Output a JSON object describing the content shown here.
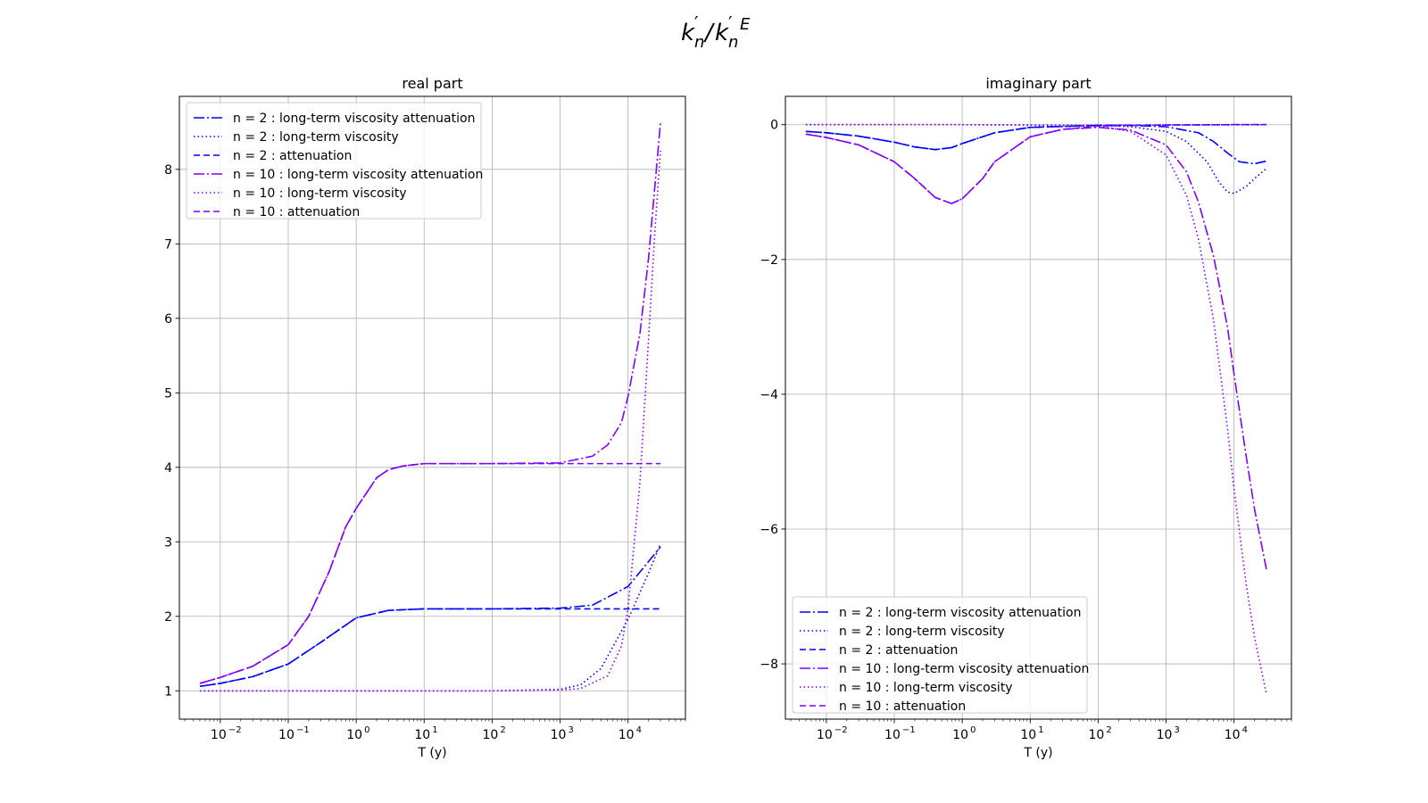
{
  "figure": {
    "title_main": "k",
    "title_sub": "n",
    "title_prime": "′",
    "title_slash": "/",
    "title_sup": "E"
  },
  "legend_labels": [
    "n = 2 : long-term viscosity attenuation",
    "n = 2 : long-term viscosity",
    "n = 2 :  attenuation",
    "n = 10 : long-term viscosity attenuation",
    "n = 10 : long-term viscosity",
    "n = 10 :  attenuation"
  ],
  "colors": {
    "n2": "#0000ff",
    "n10": "#7f00ff",
    "grid": "#b0b0b0"
  },
  "chart_data": [
    {
      "type": "line",
      "title": "real part",
      "xlabel": "T (y)",
      "ylabel": "",
      "xscale": "log",
      "xlim": [
        0.0025,
        70000
      ],
      "ylim": [
        0.62,
        8.98
      ],
      "xticks": [
        0.01,
        0.1,
        1,
        10,
        100,
        1000,
        10000
      ],
      "xtick_labels": [
        "10",
        "10",
        "10",
        "10",
        "10",
        "10",
        "10"
      ],
      "xtick_exponents": [
        "−2",
        "−1",
        "0",
        "1",
        "2",
        "3",
        "4"
      ],
      "yticks": [
        1,
        2,
        3,
        4,
        5,
        6,
        7,
        8
      ],
      "ytick_labels": [
        "1",
        "2",
        "3",
        "4",
        "5",
        "6",
        "7",
        "8"
      ],
      "grid": true,
      "legend_position": "upper-left",
      "series": [
        {
          "style": "dashdot",
          "color": "#0000ff",
          "x": [
            0.005,
            0.01,
            0.03,
            0.1,
            0.3,
            1,
            3,
            10,
            100,
            1000,
            3000,
            10000,
            30000
          ],
          "y": [
            1.06,
            1.1,
            1.19,
            1.36,
            1.65,
            1.98,
            2.08,
            2.1,
            2.1,
            2.11,
            2.15,
            2.4,
            2.93
          ]
        },
        {
          "style": "dotted",
          "color": "#0000ff",
          "x": [
            0.005,
            1,
            100,
            1000,
            2000,
            4000,
            10000,
            20000,
            30000
          ],
          "y": [
            1.0,
            1.0,
            1.0,
            1.02,
            1.08,
            1.3,
            1.96,
            2.58,
            2.97
          ]
        },
        {
          "style": "dashed",
          "color": "#0000ff",
          "x": [
            0.005,
            0.01,
            0.03,
            0.1,
            0.3,
            1,
            3,
            10,
            100,
            1000,
            10000,
            30000
          ],
          "y": [
            1.06,
            1.1,
            1.19,
            1.36,
            1.65,
            1.98,
            2.08,
            2.1,
            2.1,
            2.1,
            2.1,
            2.1
          ]
        },
        {
          "style": "dashdot",
          "color": "#7f00ff",
          "x": [
            0.005,
            0.01,
            0.03,
            0.1,
            0.2,
            0.4,
            0.7,
            1,
            2,
            3,
            5,
            10,
            100,
            1000,
            3000,
            5000,
            8000,
            10000,
            15000,
            20000,
            25000,
            30000
          ],
          "y": [
            1.1,
            1.18,
            1.33,
            1.62,
            2.0,
            2.6,
            3.2,
            3.45,
            3.86,
            3.97,
            4.02,
            4.05,
            4.05,
            4.06,
            4.15,
            4.3,
            4.6,
            4.95,
            5.8,
            6.8,
            7.8,
            8.62
          ]
        },
        {
          "style": "dotted",
          "color": "#7f00ff",
          "x": [
            0.005,
            1,
            100,
            1000,
            2000,
            5000,
            8000,
            10000,
            15000,
            20000,
            25000,
            30000
          ],
          "y": [
            1.0,
            1.0,
            1.0,
            1.01,
            1.03,
            1.2,
            1.6,
            2.1,
            3.8,
            5.7,
            7.2,
            8.25
          ]
        },
        {
          "style": "dashed",
          "color": "#7f00ff",
          "x": [
            0.005,
            0.01,
            0.03,
            0.1,
            0.2,
            0.4,
            0.7,
            1,
            2,
            3,
            5,
            10,
            100,
            1000,
            10000,
            30000
          ],
          "y": [
            1.1,
            1.18,
            1.33,
            1.62,
            2.0,
            2.6,
            3.2,
            3.45,
            3.86,
            3.97,
            4.02,
            4.05,
            4.05,
            4.05,
            4.05,
            4.05
          ]
        }
      ]
    },
    {
      "type": "line",
      "title": "imaginary part",
      "xlabel": "T (y)",
      "ylabel": "",
      "xscale": "log",
      "xlim": [
        0.0025,
        70000
      ],
      "ylim": [
        -8.82,
        0.42
      ],
      "xticks": [
        0.01,
        0.1,
        1,
        10,
        100,
        1000,
        10000
      ],
      "xtick_labels": [
        "10",
        "10",
        "10",
        "10",
        "10",
        "10",
        "10"
      ],
      "xtick_exponents": [
        "−2",
        "−1",
        "0",
        "1",
        "2",
        "3",
        "4"
      ],
      "yticks": [
        0,
        -2,
        -4,
        -6,
        -8
      ],
      "ytick_labels": [
        "0",
        "−2",
        "−4",
        "−6",
        "−8"
      ],
      "grid": true,
      "legend_position": "lower-left",
      "series": [
        {
          "style": "dashdot",
          "color": "#0000ff",
          "x": [
            0.005,
            0.01,
            0.03,
            0.1,
            0.2,
            0.4,
            0.7,
            1,
            3,
            10,
            100,
            300,
            1000,
            3000,
            5000,
            8000,
            12000,
            20000,
            30000
          ],
          "y": [
            -0.1,
            -0.12,
            -0.17,
            -0.26,
            -0.33,
            -0.37,
            -0.34,
            -0.28,
            -0.12,
            -0.04,
            -0.01,
            -0.01,
            -0.03,
            -0.12,
            -0.25,
            -0.42,
            -0.55,
            -0.58,
            -0.54
          ]
        },
        {
          "style": "dotted",
          "color": "#0000ff",
          "x": [
            0.005,
            1,
            100,
            300,
            1000,
            2000,
            4000,
            6000,
            8000,
            10000,
            15000,
            20000,
            30000
          ],
          "y": [
            0.0,
            0.0,
            -0.01,
            -0.03,
            -0.1,
            -0.25,
            -0.55,
            -0.85,
            -1.0,
            -1.02,
            -0.92,
            -0.8,
            -0.65
          ]
        },
        {
          "style": "dashed",
          "color": "#0000ff",
          "x": [
            0.005,
            0.01,
            0.03,
            0.1,
            0.2,
            0.4,
            0.7,
            1,
            3,
            10,
            100,
            1000,
            10000,
            30000
          ],
          "y": [
            -0.1,
            -0.12,
            -0.17,
            -0.26,
            -0.33,
            -0.37,
            -0.34,
            -0.28,
            -0.12,
            -0.04,
            -0.01,
            -0.005,
            0.0,
            0.0
          ]
        },
        {
          "style": "dashdot",
          "color": "#7f00ff",
          "x": [
            0.005,
            0.01,
            0.03,
            0.1,
            0.2,
            0.4,
            0.7,
            1,
            2,
            3,
            10,
            30,
            100,
            300,
            1000,
            2000,
            3000,
            5000,
            8000,
            10000,
            15000,
            20000,
            30000
          ],
          "y": [
            -0.14,
            -0.19,
            -0.3,
            -0.55,
            -0.8,
            -1.08,
            -1.17,
            -1.1,
            -0.8,
            -0.55,
            -0.18,
            -0.07,
            -0.04,
            -0.08,
            -0.3,
            -0.7,
            -1.15,
            -1.95,
            -3.0,
            -3.7,
            -4.9,
            -5.7,
            -6.6
          ]
        },
        {
          "style": "dotted",
          "color": "#7f00ff",
          "x": [
            0.005,
            1,
            100,
            300,
            1000,
            2000,
            3000,
            5000,
            8000,
            10000,
            15000,
            20000,
            30000
          ],
          "y": [
            0.0,
            0.0,
            -0.02,
            -0.1,
            -0.45,
            -1.05,
            -1.7,
            -2.9,
            -4.5,
            -5.4,
            -6.8,
            -7.6,
            -8.45
          ]
        },
        {
          "style": "dashed",
          "color": "#7f00ff",
          "x": [
            0.005,
            0.01,
            0.03,
            0.1,
            0.2,
            0.4,
            0.7,
            1,
            2,
            3,
            10,
            30,
            100,
            1000,
            10000,
            30000
          ],
          "y": [
            -0.14,
            -0.19,
            -0.3,
            -0.55,
            -0.8,
            -1.08,
            -1.17,
            -1.1,
            -0.8,
            -0.55,
            -0.18,
            -0.07,
            -0.02,
            -0.005,
            0.0,
            0.0
          ]
        }
      ]
    }
  ]
}
